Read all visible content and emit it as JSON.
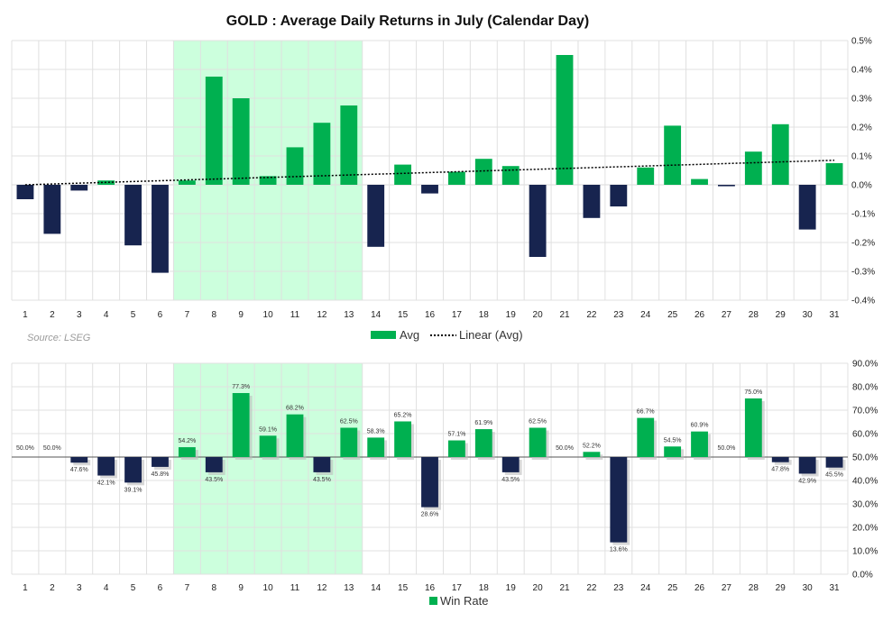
{
  "title": "GOLD : Average Daily Returns in July (Calendar Day)",
  "source": "Source: LSEG",
  "colors": {
    "positive": "#00b050",
    "negative": "#17244f",
    "highlight": "#ccffdd",
    "trend": "#000000",
    "grid": "#e0e0e0"
  },
  "chart_data": [
    {
      "type": "bar",
      "name": "avg-returns",
      "categories": [
        "1",
        "2",
        "3",
        "4",
        "5",
        "6",
        "7",
        "8",
        "9",
        "10",
        "11",
        "12",
        "13",
        "14",
        "15",
        "16",
        "17",
        "18",
        "19",
        "20",
        "21",
        "22",
        "23",
        "24",
        "25",
        "26",
        "27",
        "28",
        "29",
        "30",
        "31"
      ],
      "series": [
        {
          "name": "Avg",
          "values": [
            -0.05,
            -0.17,
            -0.02,
            0.015,
            -0.21,
            -0.305,
            0.015,
            0.375,
            0.3,
            0.03,
            0.13,
            0.215,
            0.275,
            -0.215,
            0.07,
            -0.03,
            0.045,
            0.09,
            0.065,
            -0.25,
            0.45,
            -0.115,
            -0.075,
            0.06,
            0.205,
            0.02,
            -0.005,
            0.115,
            0.21,
            -0.155,
            0.075
          ]
        }
      ],
      "trendline": {
        "name": "Linear (Avg)",
        "start": 0.0,
        "end": 0.085
      },
      "ylim": [
        -0.4,
        0.5
      ],
      "yticks": [
        0.5,
        0.4,
        0.3,
        0.2,
        0.1,
        0.0,
        -0.1,
        -0.2,
        -0.3,
        -0.4
      ],
      "ytick_labels": [
        "0.5%",
        "0.4%",
        "0.3%",
        "0.2%",
        "0.1%",
        "0.0%",
        "-0.1%",
        "-0.2%",
        "-0.3%",
        "-0.4%"
      ],
      "highlight_categories": [
        "7",
        "13"
      ],
      "legend": [
        "Avg",
        "Linear (Avg)"
      ],
      "legend_position": "bottom",
      "grid": true
    },
    {
      "type": "bar",
      "name": "win-rate",
      "categories": [
        "1",
        "2",
        "3",
        "4",
        "5",
        "6",
        "7",
        "8",
        "9",
        "10",
        "11",
        "12",
        "13",
        "14",
        "15",
        "16",
        "17",
        "18",
        "19",
        "20",
        "21",
        "22",
        "23",
        "24",
        "25",
        "26",
        "27",
        "28",
        "29",
        "30",
        "31"
      ],
      "baseline": 50,
      "series": [
        {
          "name": "Win Rate",
          "values": [
            50.0,
            50.0,
            47.6,
            42.1,
            39.1,
            45.8,
            54.2,
            43.5,
            77.3,
            59.1,
            68.2,
            43.5,
            62.5,
            58.3,
            65.2,
            28.6,
            57.1,
            61.9,
            43.5,
            62.5,
            50.0,
            52.2,
            13.6,
            66.7,
            54.5,
            60.9,
            50.0,
            75.0,
            47.8,
            42.9,
            45.5
          ]
        }
      ],
      "data_labels": [
        "50.0%",
        "50.0%",
        "47.6%",
        "42.1%",
        "39.1%",
        "45.8%",
        "54.2%",
        "43.5%",
        "77.3%",
        "59.1%",
        "68.2%",
        "43.5%",
        "62.5%",
        "58.3%",
        "65.2%",
        "28.6%",
        "57.1%",
        "61.9%",
        "43.5%",
        "62.5%",
        "50.0%",
        "52.2%",
        "13.6%",
        "66.7%",
        "54.5%",
        "60.9%",
        "50.0%",
        "75.0%",
        "47.8%",
        "42.9%",
        "45.5%"
      ],
      "ylim": [
        0,
        90
      ],
      "yticks": [
        90,
        80,
        70,
        60,
        50,
        40,
        30,
        20,
        10,
        0
      ],
      "ytick_labels": [
        "90.0%",
        "80.0%",
        "70.0%",
        "60.0%",
        "50.0%",
        "40.0%",
        "30.0%",
        "20.0%",
        "10.0%",
        "0.0%"
      ],
      "highlight_categories": [
        "7",
        "13"
      ],
      "legend": [
        "Win Rate"
      ],
      "legend_position": "bottom",
      "grid": true
    }
  ]
}
